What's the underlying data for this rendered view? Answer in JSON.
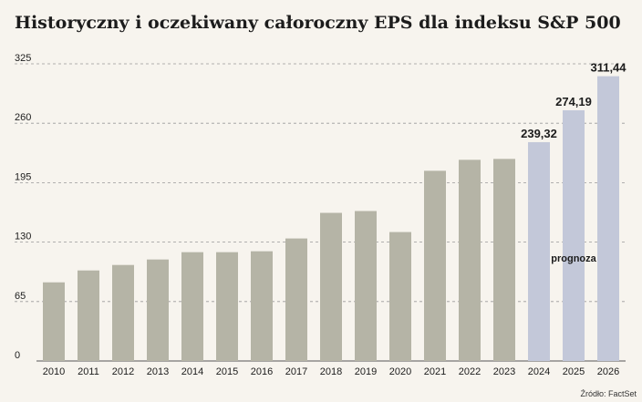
{
  "title": "Historyczny i oczekiwany całoroczny EPS dla indeksu S&P 500",
  "source": "Źródło: FactSet",
  "annotation": "prognoza",
  "colors": {
    "historical": "#b5b4a6",
    "forecast": "#c3c8d9",
    "grid": "#9a9a9a",
    "text": "#1c1c1c"
  },
  "chart_data": {
    "type": "bar",
    "title": "Historyczny i oczekiwany całoroczny EPS dla indeksu S&P 500",
    "xlabel": "",
    "ylabel": "",
    "categories": [
      "2010",
      "2011",
      "2012",
      "2013",
      "2014",
      "2015",
      "2016",
      "2017",
      "2018",
      "2019",
      "2020",
      "2021",
      "2022",
      "2023",
      "2024",
      "2025",
      "2026"
    ],
    "values": [
      86,
      99,
      105,
      111,
      119,
      119,
      120,
      134,
      162,
      164,
      141,
      208,
      220,
      221,
      239.32,
      274.19,
      311.44
    ],
    "forecast": [
      false,
      false,
      false,
      false,
      false,
      false,
      false,
      false,
      false,
      false,
      false,
      false,
      false,
      false,
      true,
      true,
      true
    ],
    "data_labels": [
      "",
      "",
      "",
      "",
      "",
      "",
      "",
      "",
      "",
      "",
      "",
      "",
      "",
      "",
      "239,32",
      "274,19",
      "311,44"
    ],
    "yticks": [
      0,
      65,
      130,
      195,
      260,
      325
    ],
    "ytick_labels": [
      "0",
      "65",
      "130",
      "195",
      "260",
      "325"
    ],
    "ylim": [
      0,
      325
    ],
    "grid": true,
    "legend": null
  }
}
